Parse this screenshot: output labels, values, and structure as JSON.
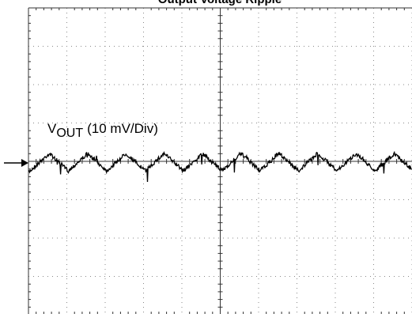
{
  "title": "Output Voltage Ripple",
  "trace_label": {
    "main": "V",
    "subscript": "OUT",
    "scale": "(10 mV/Div)"
  }
}
